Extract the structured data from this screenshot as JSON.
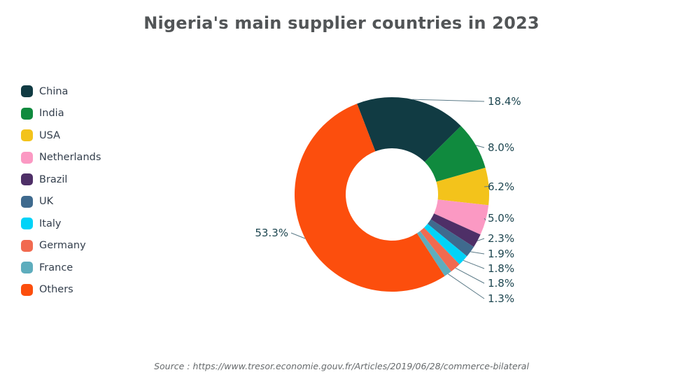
{
  "title": "Nigeria's main supplier countries in 2023",
  "source": "Source : https://www.tresor.economie.gouv.fr/Articles/2019/06/28/commerce-bilateral",
  "chart_data": {
    "type": "pie",
    "subtype": "donut",
    "title": "Nigeria's main supplier countries in 2023",
    "unit": "%",
    "start_angle_deg": -21,
    "direction": "clockwise",
    "legend_position": "left",
    "series": [
      {
        "name": "China",
        "value": 18.4,
        "label": "18.4%",
        "color": "#113b43"
      },
      {
        "name": "India",
        "value": 8.0,
        "label": "8.0%",
        "color": "#108a3e"
      },
      {
        "name": "USA",
        "value": 6.2,
        "label": "6.2%",
        "color": "#f3c31b"
      },
      {
        "name": "Netherlands",
        "value": 5.0,
        "label": "5.0%",
        "color": "#fb99c3"
      },
      {
        "name": "Brazil",
        "value": 2.3,
        "label": "2.3%",
        "color": "#4e2f67"
      },
      {
        "name": "UK",
        "value": 1.9,
        "label": "1.9%",
        "color": "#3f6a8e"
      },
      {
        "name": "Italy",
        "value": 1.8,
        "label": "1.8%",
        "color": "#00d3f8"
      },
      {
        "name": "Germany",
        "value": 1.8,
        "label": "1.8%",
        "color": "#f16a50"
      },
      {
        "name": "France",
        "value": 1.3,
        "label": "1.3%",
        "color": "#5eadbd"
      },
      {
        "name": "Others",
        "value": 53.3,
        "label": "53.3%",
        "color": "#fc4e0d"
      }
    ]
  }
}
